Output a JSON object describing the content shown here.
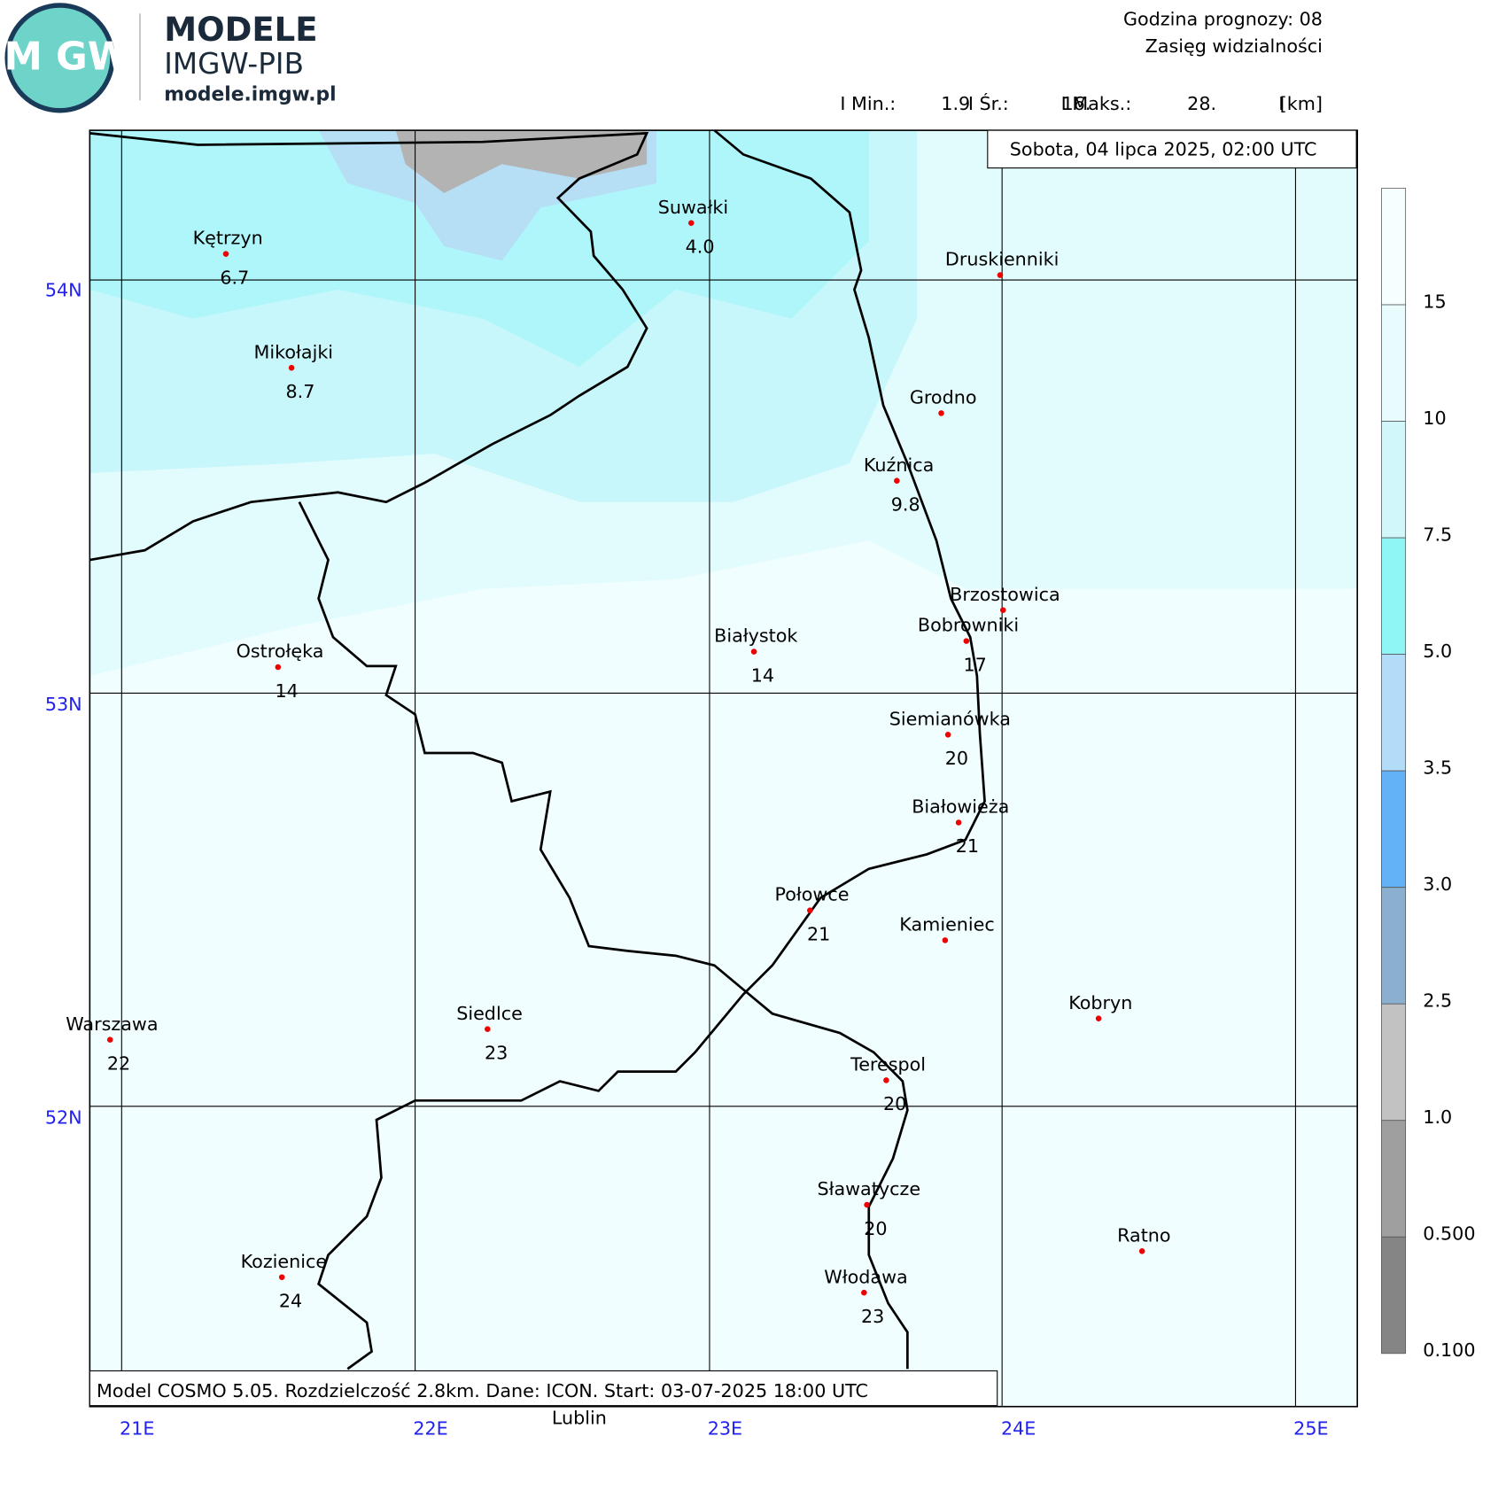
{
  "header": {
    "logo_text": "IM GW",
    "brand": "MODELE",
    "org": "IMGW-PIB",
    "url": "modele.imgw.pl",
    "forecast_hour": "Godzina prognozy: 08",
    "field": "Zasięg widzialności",
    "stats": [
      "I Min.:",
      "1.9",
      "I Śr.:",
      "16.",
      "I Maks.:",
      "28.",
      "I",
      "[km]"
    ]
  },
  "date": "Sobota, 04 lipca 2025, 02:00 UTC",
  "footer": "Model COSMO 5.05. Rozdzielczość 2.8km. Dane: ICON. Start: 03-07-2025 18:00 UTC",
  "extra_label": "Lublin",
  "lat_labels": [
    "54N",
    "53N",
    "52N"
  ],
  "lon_labels": [
    "21E",
    "22E",
    "23E",
    "24E",
    "25E"
  ],
  "colorbar_labels": [
    "15",
    "10",
    "7.5",
    "5.0",
    "3.5",
    "3.0",
    "2.5",
    "1.0",
    "0.500",
    "0.100"
  ],
  "cities": [
    {
      "name": "Kętrzyn",
      "value": "6.7"
    },
    {
      "name": "Suwałki",
      "value": "4.0"
    },
    {
      "name": "Druskienniki"
    },
    {
      "name": "Mikołajki",
      "value": "8.7"
    },
    {
      "name": "Grodno"
    },
    {
      "name": "Kuźnica",
      "value": "9.8"
    },
    {
      "name": "Brzostowica"
    },
    {
      "name": "Bobrowniki",
      "value": "17"
    },
    {
      "name": "Ostrołęka",
      "value": "14"
    },
    {
      "name": "Białystok",
      "value": "14"
    },
    {
      "name": "Siemianówka",
      "value": "20"
    },
    {
      "name": "Białowieża",
      "value": "21"
    },
    {
      "name": "Połowce",
      "value": "21"
    },
    {
      "name": "Kamieniec"
    },
    {
      "name": "Kobryn"
    },
    {
      "name": "Warszawa",
      "value": "22"
    },
    {
      "name": "Siedlce",
      "value": "23"
    },
    {
      "name": "Terespol",
      "value": "20"
    },
    {
      "name": "Sławatycze",
      "value": "20"
    },
    {
      "name": "Ratno"
    },
    {
      "name": "Kozienice",
      "value": "24"
    },
    {
      "name": "Włodawa",
      "value": "23"
    }
  ]
}
